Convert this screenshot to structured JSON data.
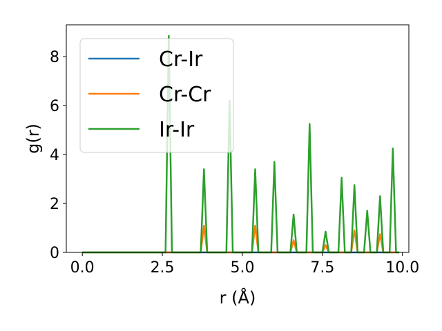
{
  "chart_data": {
    "type": "line",
    "title": "",
    "xlabel": "r (Å)",
    "ylabel": "g(r)",
    "xlim": [
      -0.5,
      10.2
    ],
    "ylim": [
      0,
      9.3
    ],
    "xticks": [
      0.0,
      2.5,
      5.0,
      7.5,
      10.0
    ],
    "xtick_labels": [
      "0.0",
      "2.5",
      "5.0",
      "7.5",
      "10.0"
    ],
    "yticks": [
      0,
      2,
      4,
      6,
      8
    ],
    "ytick_labels": [
      "0",
      "2",
      "4",
      "6",
      "8"
    ],
    "grid": false,
    "legend_position": "top-left",
    "series": [
      {
        "name": "Cr-Ir",
        "color": "#1f77b4",
        "x": [
          0.0,
          9.9
        ],
        "y": [
          0,
          0
        ]
      },
      {
        "name": "Cr-Cr",
        "color": "#ff7f0e",
        "x": [
          0.0,
          3.7,
          3.8,
          3.9,
          5.3,
          5.4,
          5.5,
          6.5,
          6.6,
          6.7,
          7.5,
          7.6,
          7.7,
          8.4,
          8.5,
          8.6,
          9.2,
          9.3,
          9.4,
          9.9
        ],
        "y": [
          0,
          0,
          1.1,
          0,
          0,
          1.1,
          0,
          0,
          0.5,
          0,
          0,
          0.3,
          0,
          0,
          0.9,
          0,
          0,
          0.75,
          0,
          0
        ]
      },
      {
        "name": "Ir-Ir",
        "color": "#2ca02c",
        "x": [
          0.0,
          2.6,
          2.7,
          2.8,
          3.7,
          3.8,
          3.9,
          4.5,
          4.6,
          4.7,
          5.3,
          5.4,
          5.5,
          5.9,
          6.0,
          6.1,
          6.5,
          6.6,
          6.7,
          7.0,
          7.1,
          7.2,
          7.5,
          7.6,
          7.7,
          8.0,
          8.1,
          8.2,
          8.4,
          8.5,
          8.6,
          8.8,
          8.9,
          9.0,
          9.2,
          9.3,
          9.4,
          9.6,
          9.7,
          9.8,
          9.9
        ],
        "y": [
          0,
          0,
          8.85,
          0,
          0,
          3.4,
          0,
          0,
          6.2,
          0,
          0,
          3.4,
          0,
          0,
          3.7,
          0,
          0,
          1.55,
          0,
          0,
          5.25,
          0,
          0,
          0.85,
          0,
          0,
          3.05,
          0,
          0,
          2.75,
          0,
          0,
          1.7,
          0,
          0,
          2.3,
          0,
          0,
          4.25,
          0,
          0
        ]
      }
    ]
  }
}
